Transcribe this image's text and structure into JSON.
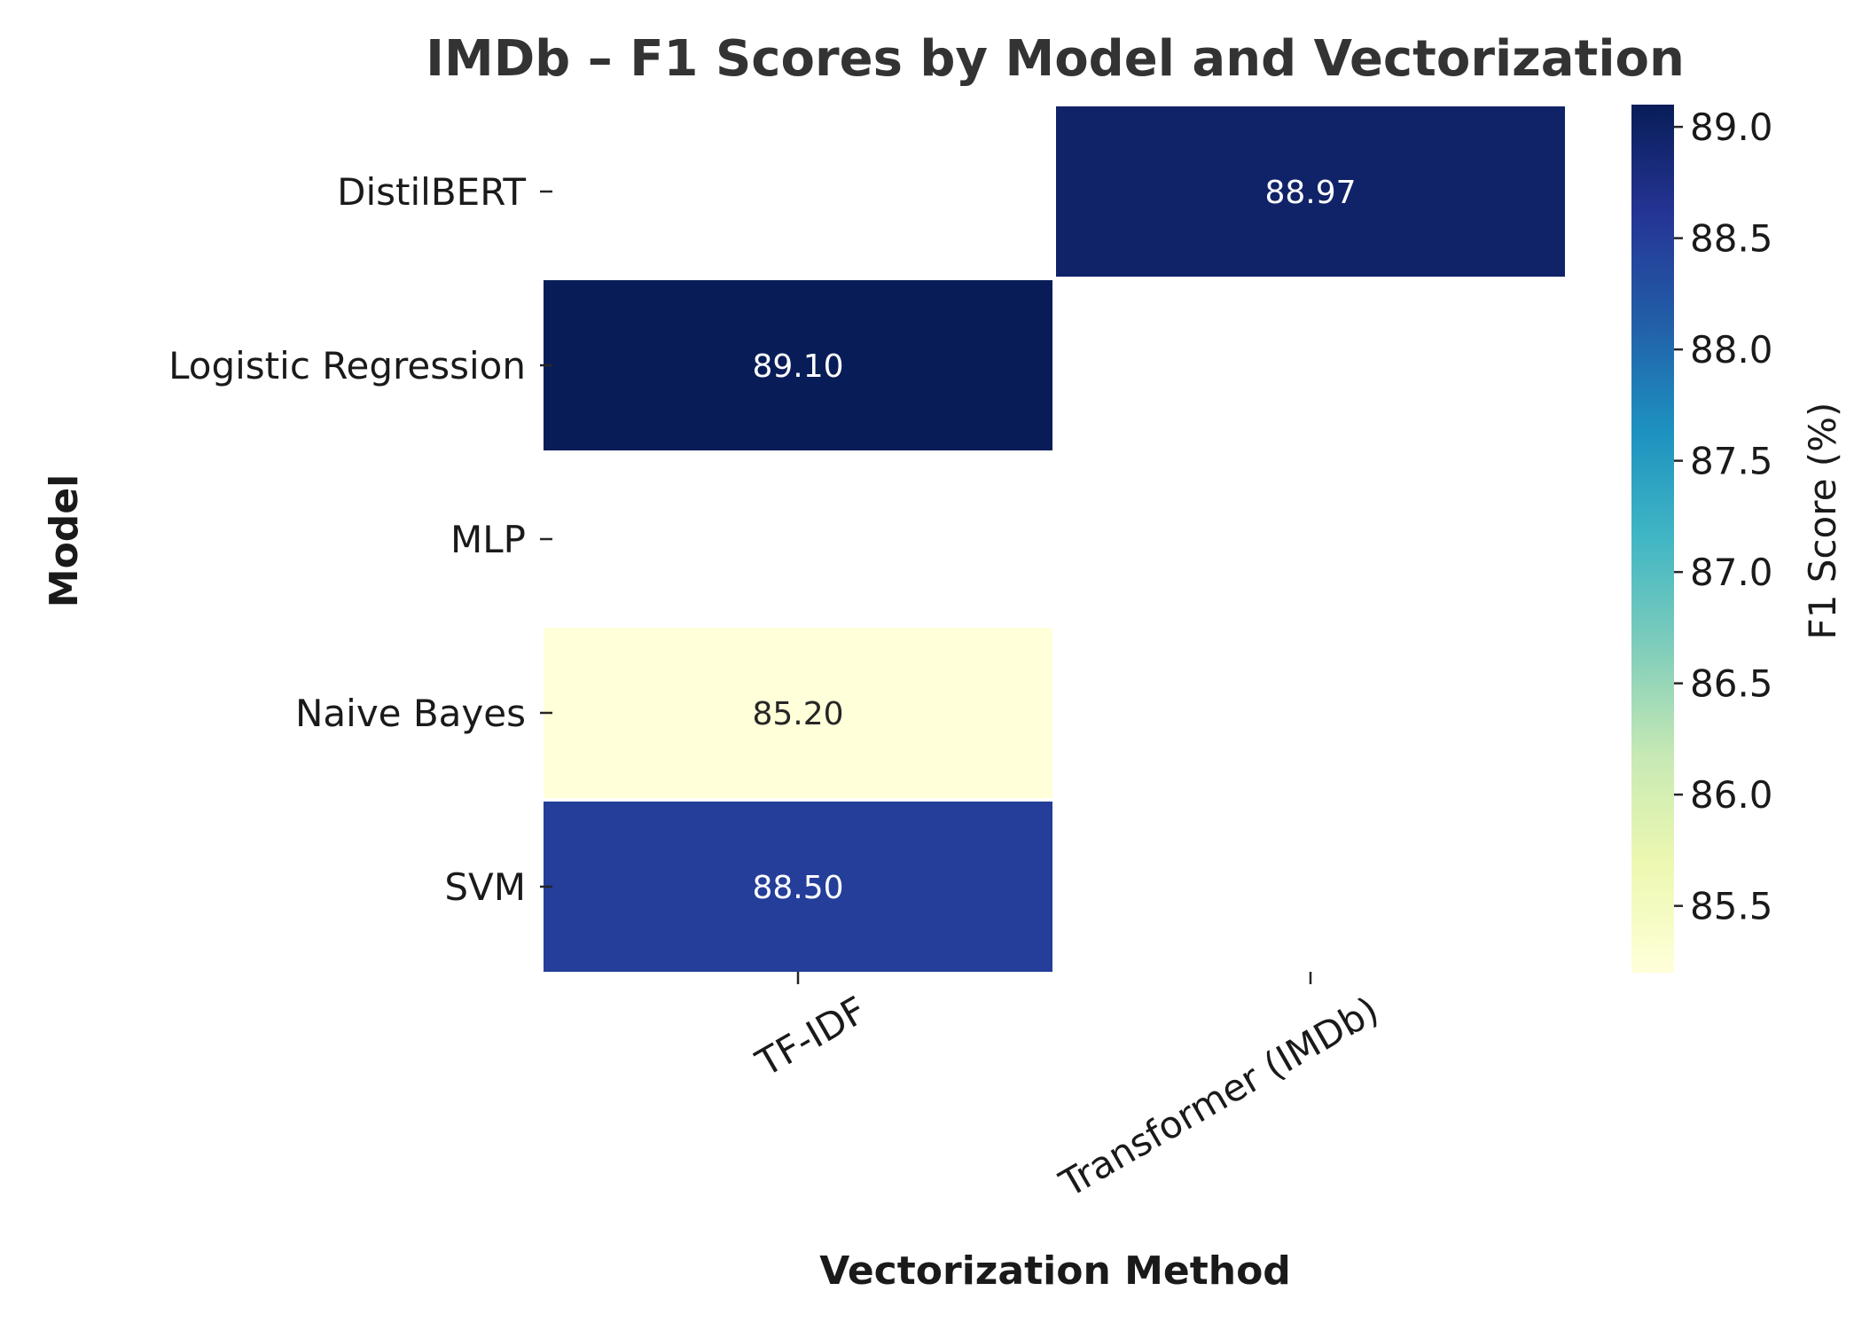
{
  "chart_data": {
    "type": "heatmap",
    "title": "IMDb – F1 Scores by Model and Vectorization",
    "xlabel": "Vectorization Method",
    "ylabel": "Model",
    "x_categories": [
      "TF-IDF",
      "Transformer (IMDb)"
    ],
    "y_categories": [
      "DistilBERT",
      "Logistic Regression",
      "MLP",
      "Naive Bayes",
      "SVM"
    ],
    "values": [
      [
        null,
        88.97
      ],
      [
        89.1,
        null
      ],
      [
        null,
        null
      ],
      [
        85.2,
        null
      ],
      [
        88.5,
        null
      ]
    ],
    "value_format": "2 decimals",
    "colorbar": {
      "label": "F1 Score (%)",
      "min": 85.2,
      "max": 89.1,
      "ticks": [
        85.5,
        86.0,
        86.5,
        87.0,
        87.5,
        88.0,
        88.5,
        89.0
      ],
      "colormap": "YlGnBu",
      "colormap_stops": [
        "#ffffd9",
        "#edf8b1",
        "#c7e9b4",
        "#7fcdbb",
        "#41b6c4",
        "#1d91c0",
        "#225ea8",
        "#253494",
        "#081d58"
      ]
    },
    "missing_cell_color": "#ffffff",
    "annotation_text_colors": {
      "light": "#262626",
      "dark": "#ffffff"
    }
  }
}
